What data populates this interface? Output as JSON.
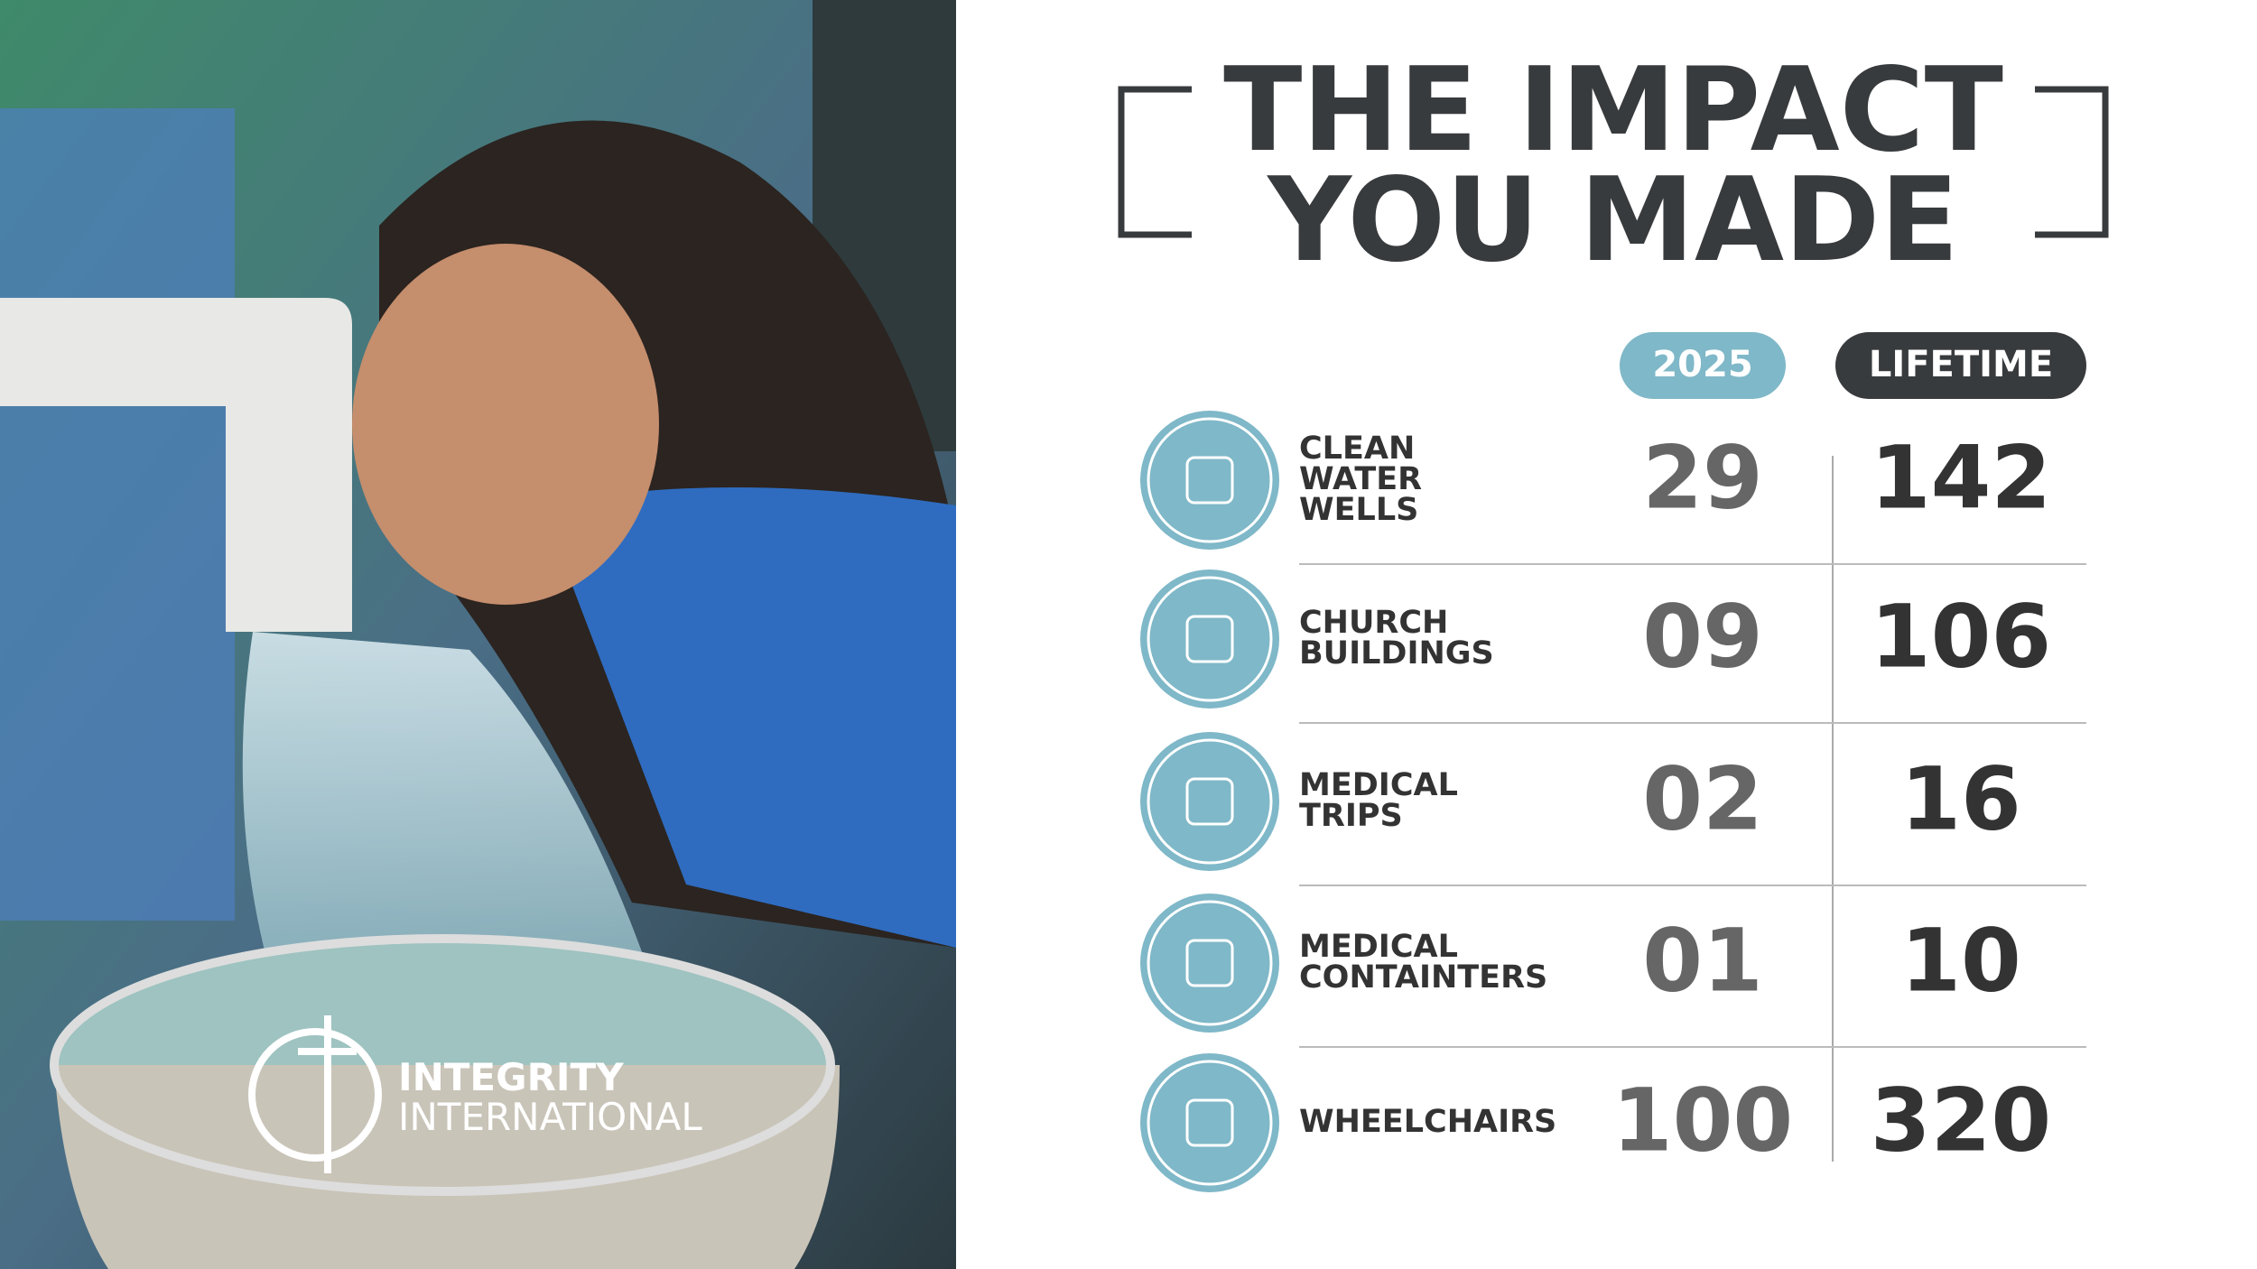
{
  "title": [
    "THE IMPACT",
    "YOU MADE"
  ],
  "logo": {
    "line1": "INTEGRITY",
    "line2": "INTERNATIONAL"
  },
  "columns": [
    "2025",
    "LIFETIME"
  ],
  "rows": [
    {
      "label": [
        "CLEAN",
        "WATER",
        "WELLS"
      ],
      "current": "29",
      "lifetime": "142"
    },
    {
      "label": [
        "CHURCH",
        "BUILDINGS"
      ],
      "current": "09",
      "lifetime": "106"
    },
    {
      "label": [
        "MEDICAL",
        "TRIPS"
      ],
      "current": "02",
      "lifetime": "16"
    },
    {
      "label": [
        "MEDICAL",
        "CONTAINTERS"
      ],
      "current": "01",
      "lifetime": "10"
    },
    {
      "label": [
        "WHEELCHAIRS"
      ],
      "current": "100",
      "lifetime": "320"
    }
  ]
}
